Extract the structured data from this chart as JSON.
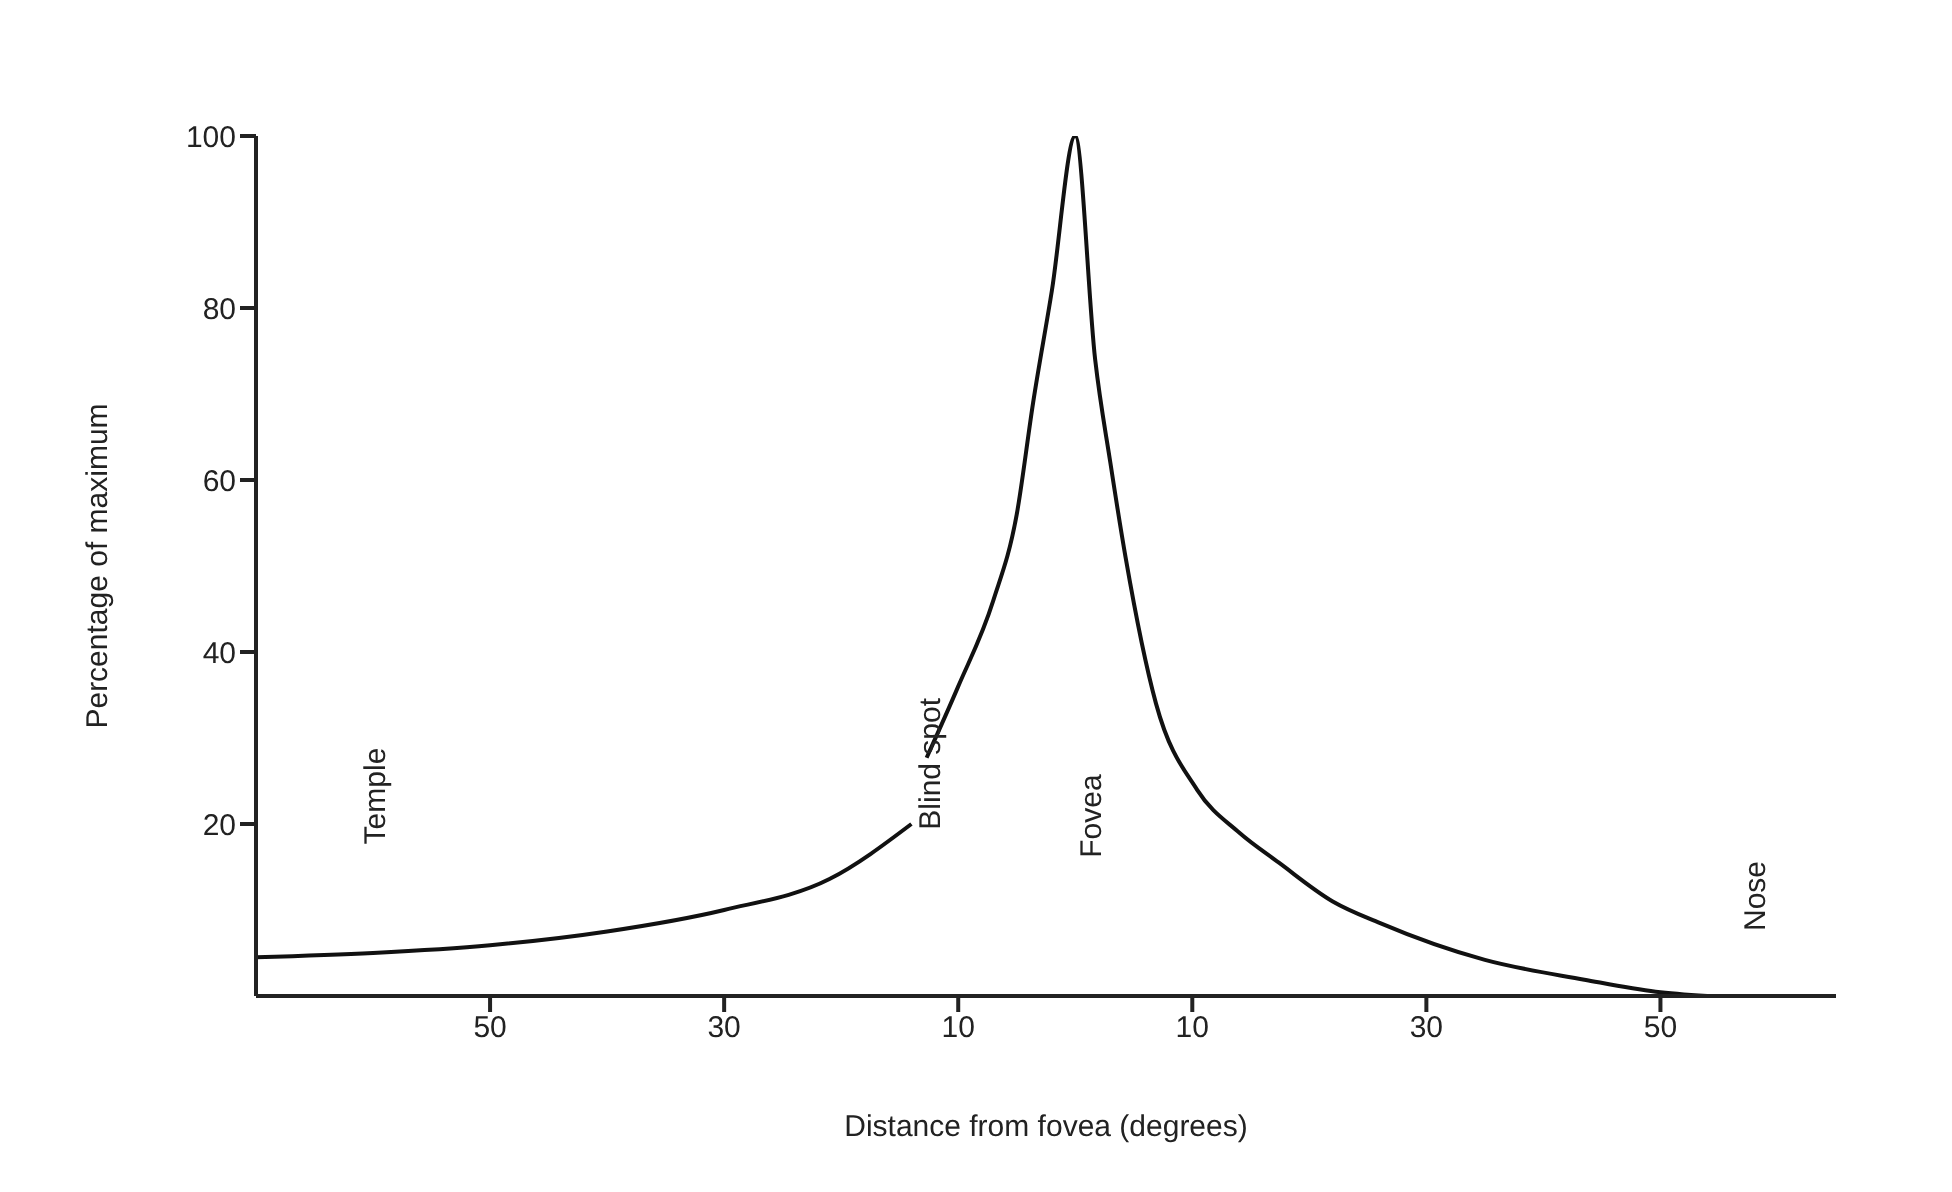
{
  "chart_data": {
    "type": "line",
    "xlabel": "Distance from fovea (degrees)",
    "ylabel": "Percentage of maximum",
    "x": [
      -70,
      -60,
      -50,
      -40,
      -30,
      -21,
      -14,
      -13.5,
      -12.7,
      -10,
      -7,
      -5,
      -3.6,
      -2,
      0,
      1.7,
      3,
      4.3,
      6.9,
      10.4,
      14,
      17.4,
      22,
      26,
      35,
      43.5,
      49.6,
      54
    ],
    "series": [
      {
        "color": "#111111",
        "values": [
          4.5,
          5,
          5.9,
          7.5,
          10,
          13.6,
          20,
          null,
          27.7,
          36,
          46,
          56,
          69,
          82,
          100,
          74,
          62,
          51,
          34,
          24,
          19,
          15.5,
          11,
          8.5,
          4.2,
          1.9,
          0.5,
          0
        ]
      }
    ],
    "xlim": [
      -70,
      65
    ],
    "xticks": [
      {
        "value": -50,
        "label": "50"
      },
      {
        "value": -30,
        "label": "30"
      },
      {
        "value": -10,
        "label": "10"
      },
      {
        "value": 10,
        "label": "10"
      },
      {
        "value": 30,
        "label": "30"
      },
      {
        "value": 50,
        "label": "50"
      }
    ],
    "ylim": [
      0,
      100
    ],
    "yticks": [
      20,
      40,
      60,
      80,
      100
    ],
    "grid": false,
    "legend": false,
    "marker": "none",
    "line_style": "solid",
    "annotations": [
      "Temple",
      {
        "text": "Blind spot",
        "x": -12.3,
        "y": 27
      },
      "Fovea",
      "Nose"
    ]
  }
}
